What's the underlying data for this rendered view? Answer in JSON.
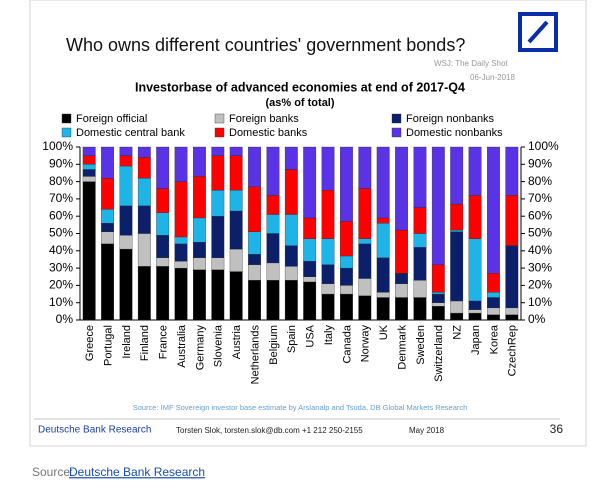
{
  "slide": {
    "title": "Who owns different countries' government bonds?",
    "watermark": "WSJ: The Daily Shot",
    "date": "06-Jun-2018"
  },
  "chart_data": {
    "type": "stacked-bar",
    "title": "Investorbase of advanced economies at end of 2017-Q4",
    "subtitle": "(as% of total)",
    "categories": [
      "Greece",
      "Portugal",
      "Ireland",
      "Finland",
      "France",
      "Australia",
      "Germany",
      "Slovenia",
      "Austria",
      "Netherlands",
      "Belgium",
      "Spain",
      "USA",
      "Italy",
      "Canada",
      "Norway",
      "UK",
      "Denmark",
      "Sweden",
      "Switzerland",
      "NZ",
      "Japan",
      "Korea",
      "CzechRep"
    ],
    "series": [
      {
        "name": "Foreign official",
        "color": "#000000",
        "values": [
          80,
          44,
          41,
          31,
          31,
          30,
          29,
          29,
          28,
          23,
          23,
          23,
          22,
          15,
          15,
          14,
          13,
          13,
          13,
          8,
          4,
          4,
          3,
          3
        ]
      },
      {
        "name": "Foreign banks",
        "color": "#c0c0c0",
        "values": [
          3,
          7,
          8,
          19,
          5,
          4,
          7,
          7,
          13,
          9,
          10,
          8,
          3,
          6,
          5,
          10,
          3,
          8,
          10,
          2,
          7,
          2,
          4,
          4
        ]
      },
      {
        "name": "Foreign nonbanks",
        "color": "#0b1f6b",
        "values": [
          4,
          5,
          17,
          16,
          13,
          10,
          9,
          24,
          22,
          6,
          17,
          12,
          9,
          11,
          10,
          20,
          20,
          6,
          19,
          5,
          40,
          5,
          6,
          36
        ]
      },
      {
        "name": "Domestic central bank",
        "color": "#1eb4e8",
        "values": [
          3,
          8,
          23,
          16,
          13,
          4,
          14,
          15,
          12,
          13,
          11,
          18,
          13,
          15,
          7,
          3,
          20,
          0,
          8,
          1,
          1,
          36,
          3,
          0
        ]
      },
      {
        "name": "Domestic banks",
        "color": "#ff0000",
        "values": [
          5,
          18,
          6,
          12,
          14,
          32,
          24,
          20,
          20,
          26,
          11,
          26,
          12,
          28,
          20,
          29,
          3,
          25,
          15,
          16,
          15,
          25,
          11,
          29
        ]
      },
      {
        "name": "Domestic nonbanks",
        "color": "#5a33e6",
        "values": [
          5,
          18,
          5,
          6,
          24,
          20,
          17,
          5,
          5,
          23,
          28,
          13,
          41,
          25,
          43,
          24,
          41,
          48,
          35,
          68,
          33,
          28,
          73,
          28
        ]
      }
    ],
    "ylim": [
      0,
      100
    ],
    "yticks": [
      {
        "value": 0,
        "label": "0%"
      },
      {
        "value": 10,
        "label": "10%"
      },
      {
        "value": 20,
        "label": "20%"
      },
      {
        "value": 30,
        "label": "30%"
      },
      {
        "value": 40,
        "label": "40%"
      },
      {
        "value": 50,
        "label": "50%"
      },
      {
        "value": 60,
        "label": "60%"
      },
      {
        "value": 70,
        "label": "70%"
      },
      {
        "value": 80,
        "label": "80%"
      },
      {
        "value": 90,
        "label": "90%"
      },
      {
        "value": 100,
        "label": "100%"
      }
    ],
    "grid": false,
    "note": "Source: IMF Sovereign investor base estimate by Arslanalp and Tsuda, DB Global Markets Research"
  },
  "footer": {
    "org": "Deutsche Bank Research",
    "contact": "Torsten Slok, torsten.slok@db.com  +1 212 250-2155",
    "date": "May 2018",
    "page": "36"
  },
  "caption": {
    "prefix": "Source:",
    "link": "Deutsche Bank Research"
  }
}
